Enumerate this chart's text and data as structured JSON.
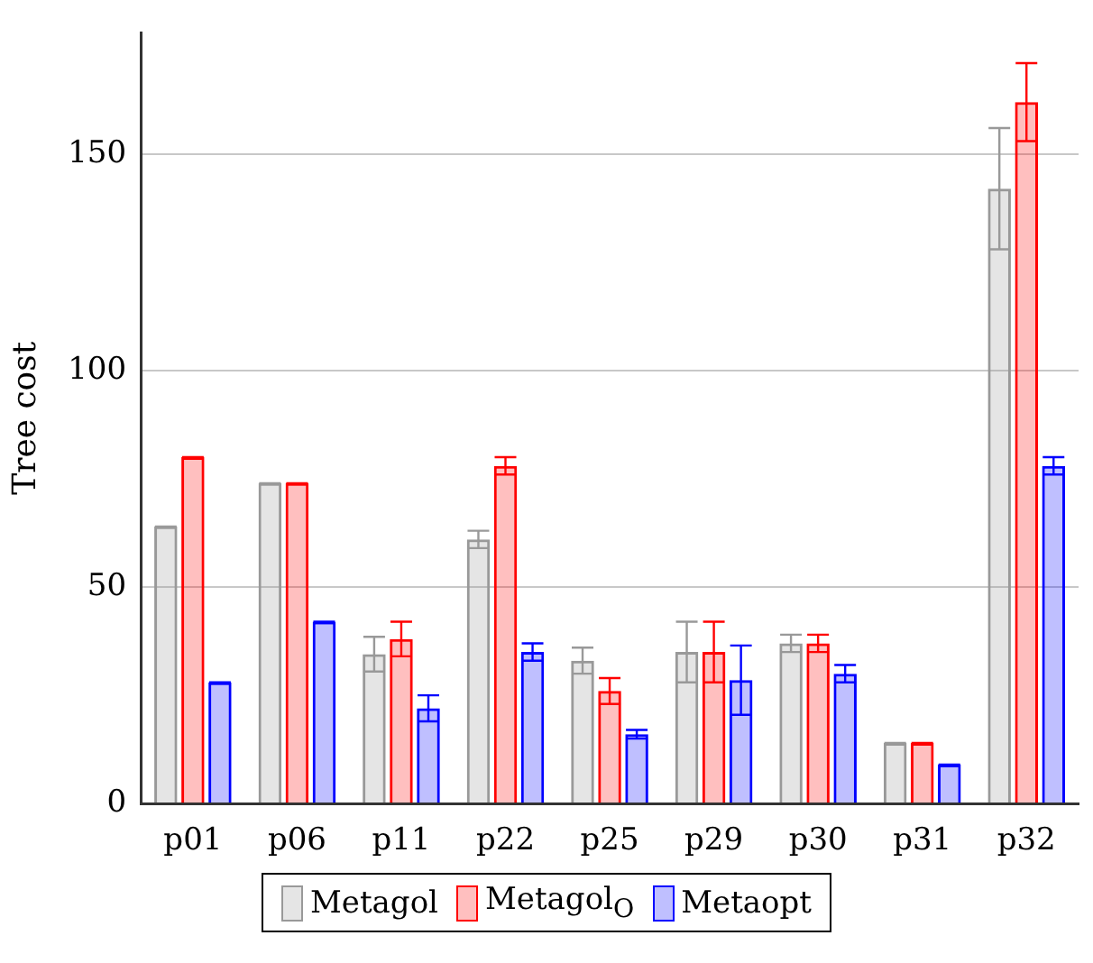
{
  "chart_data": {
    "type": "bar",
    "ylabel": "Tree cost",
    "categories": [
      "p01",
      "p06",
      "p11",
      "p22",
      "p25",
      "p29",
      "p30",
      "p31",
      "p32"
    ],
    "series": [
      {
        "name": "Metagol",
        "color": "#999999",
        "values": [
          64,
          74,
          34.5,
          61,
          33,
          35,
          37,
          14,
          142
        ],
        "errors": [
          0,
          0,
          4,
          2,
          3,
          7,
          2,
          0,
          14
        ]
      },
      {
        "name": "Metagol$_{O}$",
        "color": "#ff0000",
        "values": [
          80,
          74,
          38,
          78,
          26,
          35,
          37,
          14,
          162
        ],
        "errors": [
          0,
          0,
          4,
          2,
          3,
          7,
          2,
          0,
          9
        ]
      },
      {
        "name": "Metaopt",
        "color": "#0000ff",
        "values": [
          28,
          42,
          22,
          35,
          16,
          28.5,
          30,
          9,
          78
        ],
        "errors": [
          0,
          0,
          3,
          2,
          1,
          8,
          2,
          0,
          2
        ]
      }
    ],
    "ylim": [
      0,
      178
    ],
    "yticks": [
      0,
      50,
      100,
      150
    ],
    "grid": "y",
    "legend": "bottom"
  }
}
